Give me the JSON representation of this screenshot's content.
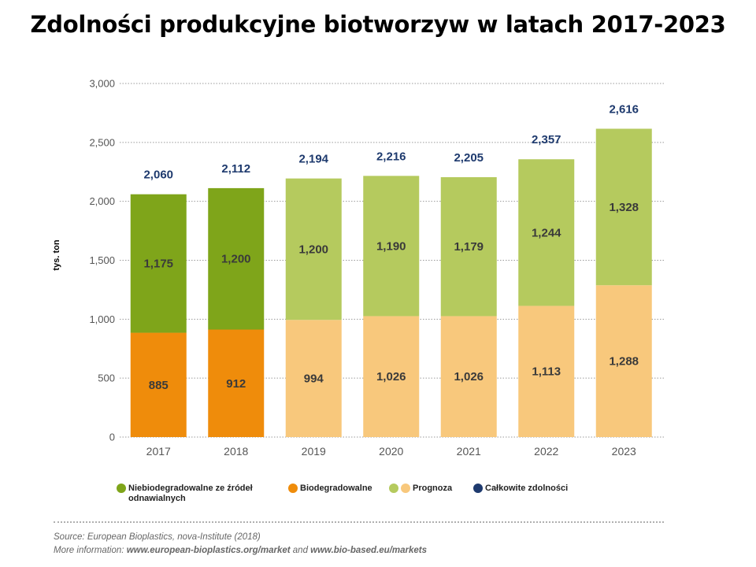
{
  "title": "Zdolności produkcyjne biotworzyw w latach 2017-2023",
  "chart_data": {
    "type": "bar",
    "stacked": true,
    "ylabel": "tys. ton",
    "ylim": [
      0,
      3000
    ],
    "yticks": [
      "0",
      "500",
      "1,000",
      "1,500",
      "2,000",
      "2,500",
      "3,000"
    ],
    "grid": "horizontal dotted",
    "categories": [
      "2017",
      "2018",
      "2019",
      "2020",
      "2021",
      "2022",
      "2023"
    ],
    "series": [
      {
        "name": "Biodegradowalne",
        "values": [
          885,
          912,
          994,
          1026,
          1026,
          1113,
          1288
        ],
        "labels": [
          "885",
          "912",
          "994",
          "1,026",
          "1,026",
          "1,113",
          "1,288"
        ]
      },
      {
        "name": "Niebiodegradowalne ze źródeł odnawialnych",
        "values": [
          1175,
          1200,
          1200,
          1190,
          1179,
          1244,
          1328
        ],
        "labels": [
          "1,175",
          "1,200",
          "1,200",
          "1,190",
          "1,179",
          "1,244",
          "1,328"
        ]
      }
    ],
    "totals": {
      "name": "Całkowite zdolności",
      "values": [
        2060,
        2112,
        2194,
        2216,
        2205,
        2357,
        2616
      ],
      "labels": [
        "2,060",
        "2,112",
        "2,194",
        "2,216",
        "2,205",
        "2,357",
        "2,616"
      ]
    },
    "forecast_from_index": 2,
    "colors": {
      "nonbio": "#7fa51a",
      "bio": "#ef8c0b",
      "nonbio_forecast": "#b5ca5e",
      "bio_forecast": "#f8c87c",
      "total": "#1e3a6e"
    }
  },
  "legend": [
    {
      "label_line1": "Niebiodegradowalne ze źródeł",
      "label_line2": "odnawialnych",
      "color": "#7fa51a"
    },
    {
      "label_line1": "Biodegradowalne",
      "label_line2": "",
      "color": "#ef8c0b"
    },
    {
      "label_line1": "Prognoza",
      "label_line2": "",
      "color": "#b5ca5e",
      "color2": "#f8c87c"
    },
    {
      "label_line1": "Całkowite zdolności",
      "label_line2": "",
      "color": "#1e3a6e"
    }
  ],
  "source": {
    "line1": "Source: European Bioplastics, nova-Institute (2018)",
    "line2_prefix": "More information: ",
    "link1": "www.european-bioplastics.org/market",
    "and": " and ",
    "link2": "www.bio-based.eu/markets"
  }
}
